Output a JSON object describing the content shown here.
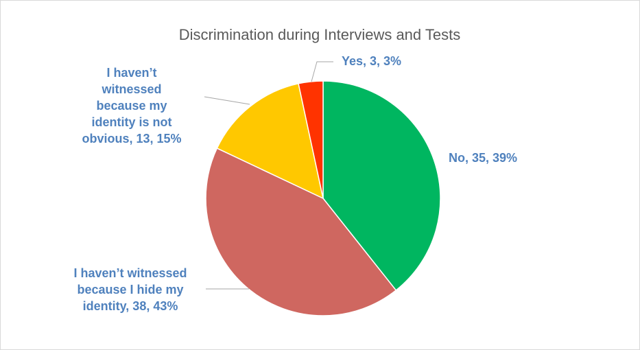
{
  "chart_data": {
    "type": "pie",
    "title": "Discrimination during Interviews and Tests",
    "slices": [
      {
        "category": "No",
        "value": 35,
        "percent": "39%",
        "color": "#00B660",
        "label_lines": [
          "No, 35, 39%"
        ]
      },
      {
        "category": "I haven’t witnessed because I hide my identity",
        "value": 38,
        "percent": "43%",
        "color": "#CF6760",
        "label_lines": [
          "I haven’t witnessed",
          "because I hide my",
          "identity, 38, 43%"
        ]
      },
      {
        "category": "I haven’t witnessed because my identity is not obvious",
        "value": 13,
        "percent": "15%",
        "color": "#FFC800",
        "label_lines": [
          "I haven’t",
          "witnessed",
          "because my",
          "identity is not",
          "obvious, 13, 15%"
        ]
      },
      {
        "category": "Yes",
        "value": 3,
        "percent": "3%",
        "color": "#FF3300",
        "label_lines": [
          "Yes, 3, 3%"
        ]
      }
    ],
    "legend": "none",
    "label_color": "#4F81BD",
    "leader_line_color": "#A6A6A6",
    "border_color": "#D9D9D9"
  }
}
